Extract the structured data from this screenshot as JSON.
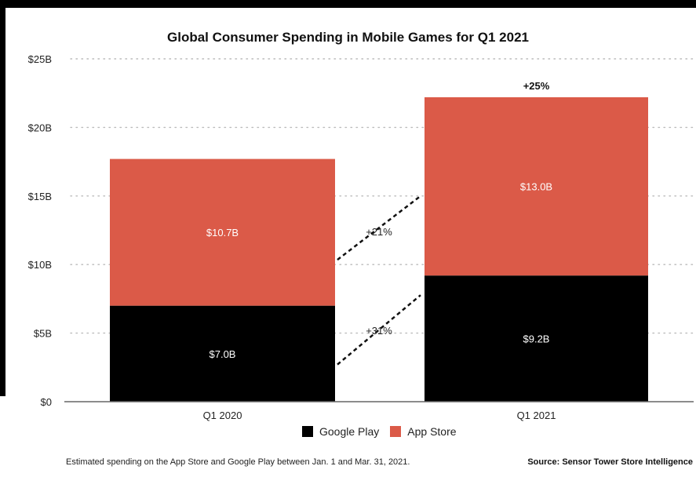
{
  "chart_data": {
    "type": "bar",
    "stacked": true,
    "title": "Global Consumer Spending in Mobile Games for Q1 2021",
    "categories": [
      "Q1 2020",
      "Q1 2021"
    ],
    "series": [
      {
        "name": "Google Play",
        "color": "#000000",
        "values": [
          7.0,
          9.2
        ],
        "labels": [
          "$7.0B",
          "$9.2B"
        ]
      },
      {
        "name": "App Store",
        "color": "#db5a48",
        "values": [
          10.7,
          13.0
        ],
        "labels": [
          "$10.7B",
          "$13.0B"
        ]
      }
    ],
    "ylim": [
      0,
      25
    ],
    "yticks": [
      0,
      5,
      10,
      15,
      20,
      25
    ],
    "ytick_labels": [
      "$0",
      "$5B",
      "$10B",
      "$15B",
      "$20B",
      "$25B"
    ],
    "xlabel": "",
    "ylabel": "",
    "grid": "dotted horizontal",
    "legend_position": "bottom-center",
    "annotations": {
      "total_growth": "+25%",
      "app_store_growth": "+21%",
      "google_play_growth": "+31%"
    }
  },
  "footer": {
    "note": "Estimated spending on the App Store and Google Play between Jan. 1 and Mar. 31, 2021.",
    "source": "Source: Sensor Tower Store Intelligence"
  }
}
